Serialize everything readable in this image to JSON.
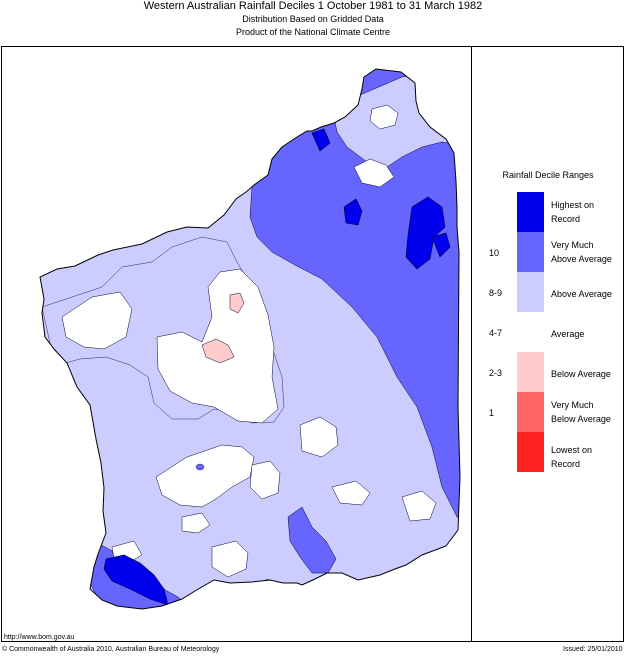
{
  "header": {
    "title": "Western Australian Rainfall Deciles     1 October 1981 to 31 March 1982",
    "subtitle1": "Distribution Based on Gridded Data",
    "subtitle2": "Product of the National Climate Centre"
  },
  "legend": {
    "title": "Rainfall Decile Ranges",
    "items": [
      {
        "label1": "Highest on",
        "label2": "Record",
        "color": "#0000ee"
      },
      {
        "label1": "Very Much",
        "label2": "Above Average",
        "color": "#6666ff"
      },
      {
        "label1": "Above Average",
        "label2": "",
        "color": "#ccccff"
      },
      {
        "label1": "Average",
        "label2": "",
        "color": "#ffffff"
      },
      {
        "label1": "Below Average",
        "label2": "",
        "color": "#ffcccc"
      },
      {
        "label1": "Very Much",
        "label2": "Below Average",
        "color": "#ff6666"
      },
      {
        "label1": "Lowest on",
        "label2": "Record",
        "color": "#ff2222"
      }
    ],
    "deciles": [
      "10",
      "8-9",
      "4-7",
      "2-3",
      "1"
    ]
  },
  "footer": {
    "url": "http://www.bom.gov.au",
    "copyright": "© Commonwealth of Australia 2010, Australian Bureau of Meteorology",
    "issued": "Issued: 25/01/2010"
  }
}
